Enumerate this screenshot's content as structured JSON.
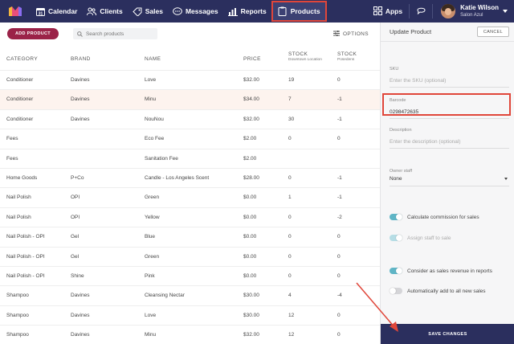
{
  "nav": {
    "items": [
      {
        "label": "Calendar",
        "icon": "calendar-icon"
      },
      {
        "label": "Clients",
        "icon": "clients-icon"
      },
      {
        "label": "Sales",
        "icon": "tag-icon"
      },
      {
        "label": "Messages",
        "icon": "messages-icon"
      },
      {
        "label": "Reports",
        "icon": "bar-chart-icon"
      },
      {
        "label": "Products",
        "icon": "clipboard-icon",
        "active": true
      }
    ],
    "apps_label": "Apps",
    "user": {
      "name": "Katie Wilson",
      "location": "Salon Azul"
    }
  },
  "toolbar": {
    "add_label": "ADD PRODUCT",
    "search_placeholder": "Search products",
    "options_label": "OPTIONS"
  },
  "table": {
    "headers": {
      "category": "CATEGORY",
      "brand": "BRAND",
      "name": "NAME",
      "price": "PRICE",
      "stock1": "STOCK",
      "stock1_sub": "Downtown Location",
      "stock2": "STOCK",
      "stock2_sub": "Posedens"
    },
    "rows": [
      {
        "category": "Conditioner",
        "brand": "Davines",
        "name": "Love",
        "price": "$32.00",
        "s1": "19",
        "s2": "0"
      },
      {
        "category": "Conditioner",
        "brand": "Davines",
        "name": "Minu",
        "price": "$34.00",
        "s1": "7",
        "s2": "-1"
      },
      {
        "category": "Conditioner",
        "brand": "Davines",
        "name": "NouNou",
        "price": "$32.00",
        "s1": "30",
        "s2": "-1"
      },
      {
        "category": "Fees",
        "brand": "",
        "name": "Eco Fee",
        "price": "$2.00",
        "s1": "0",
        "s2": "0"
      },
      {
        "category": "Fees",
        "brand": "",
        "name": "Sanitation Fee",
        "price": "$2.00",
        "s1": "",
        "s2": ""
      },
      {
        "category": "Home Goods",
        "brand": "P+Co",
        "name": "Candle - Los Angeles Scent",
        "price": "$28.00",
        "s1": "0",
        "s2": "-1"
      },
      {
        "category": "Nail Polish",
        "brand": "OPI",
        "name": "Green",
        "price": "$0.00",
        "s1": "1",
        "s2": "-1"
      },
      {
        "category": "Nail Polish",
        "brand": "OPI",
        "name": "Yellow",
        "price": "$0.00",
        "s1": "0",
        "s2": "-2"
      },
      {
        "category": "Nail Polish - OPI",
        "brand": "Gel",
        "name": "Blue",
        "price": "$0.00",
        "s1": "0",
        "s2": "0"
      },
      {
        "category": "Nail Polish - OPI",
        "brand": "Gel",
        "name": "Green",
        "price": "$0.00",
        "s1": "0",
        "s2": "0"
      },
      {
        "category": "Nail Polish - OPI",
        "brand": "Shine",
        "name": "Pink",
        "price": "$0.00",
        "s1": "0",
        "s2": "0"
      },
      {
        "category": "Shampoo",
        "brand": "Davines",
        "name": "Cleansing Nectar",
        "price": "$30.00",
        "s1": "4",
        "s2": "-4"
      },
      {
        "category": "Shampoo",
        "brand": "Davines",
        "name": "Love",
        "price": "$30.00",
        "s1": "12",
        "s2": "0"
      },
      {
        "category": "Shampoo",
        "brand": "Davines",
        "name": "Minu",
        "price": "$32.00",
        "s1": "12",
        "s2": "0"
      }
    ],
    "highlighted_row": 1
  },
  "panel": {
    "title": "Update Product",
    "cancel_label": "CANCEL",
    "sku": {
      "label": "SKU",
      "placeholder": "Enter the SKU (optional)",
      "value": ""
    },
    "barcode": {
      "label": "Barcode",
      "value": "0298472635"
    },
    "description": {
      "label": "Description",
      "placeholder": "Enter the description (optional)",
      "value": ""
    },
    "owner": {
      "label": "Owner staff",
      "value": "None"
    },
    "toggles": [
      {
        "label": "Calculate commission for sales",
        "state": "on"
      },
      {
        "label": "Assign staff to sale",
        "state": "dim"
      },
      {
        "label": "Consider as sales revenue in reports",
        "state": "on"
      },
      {
        "label": "Automatically add to all new sales",
        "state": "off"
      }
    ],
    "save_label": "SAVE CHANGES"
  },
  "colors": {
    "nav_bg": "#2b2f5e",
    "accent": "#9b2248",
    "toggle_on": "#5fb5c6",
    "annotation": "#e0463a"
  }
}
